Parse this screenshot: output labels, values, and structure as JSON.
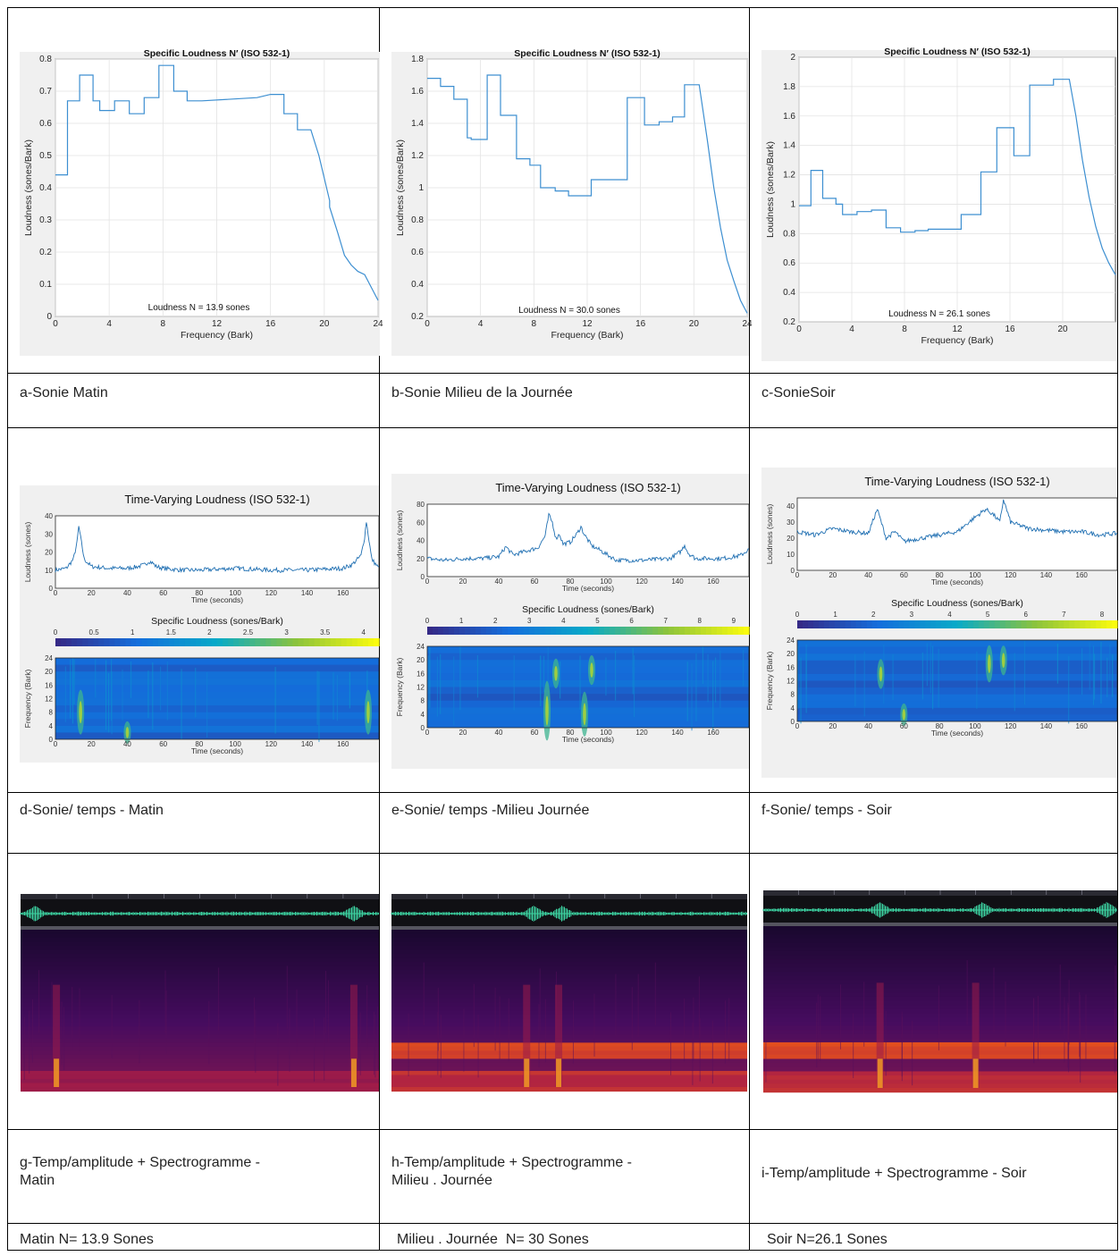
{
  "captions": {
    "a": "a-Sonie Matin",
    "b": "b-Sonie Milieu de la Journée",
    "c": "c-SonieSoir",
    "d": "d-Sonie/ temps - Matin",
    "e": "e-Sonie/ temps -Milieu Journée",
    "f": "f-Sonie/ temps - Soir",
    "g1": "g-Temp/amplitude + Spectrogramme -",
    "g2": "Matin",
    "h1": "h-Temp/amplitude + Spectrogramme -",
    "h2": "Milieu . Journée",
    "i": "i-Temp/amplitude + Spectrogramme - Soir"
  },
  "summary": {
    "matin": "Matin N= 13.9 Sones",
    "milieu": "Milieu . Journée  N= 30 Sones",
    "soir": "Soir N=26.1 Sones"
  },
  "colors": {
    "line": "#3d8fd1",
    "plot_bg": "#ffffff",
    "figure_bg": "#f0f0f0",
    "grid": "#e3e3e3"
  },
  "chart_data": [
    {
      "id": "a",
      "type": "line",
      "title": "Specific Loudness N′ (ISO 532-1)",
      "xlabel": "Frequency (Bark)",
      "ylabel": "Loudness (sones/Bark)",
      "annotation": "Loudness N = 13.9 sones",
      "xlim": [
        0,
        24
      ],
      "ylim": [
        0,
        0.8
      ],
      "xticks": [
        0,
        4,
        8,
        12,
        16,
        20,
        24
      ],
      "yticks": [
        0,
        0.1,
        0.2,
        0.3,
        0.4,
        0.5,
        0.6,
        0.7,
        0.8
      ],
      "grid": true,
      "x": [
        0,
        0.9,
        0.9,
        1.8,
        1.8,
        2.8,
        2.8,
        3.3,
        3.3,
        4.4,
        4.4,
        5.5,
        5.5,
        6.6,
        6.6,
        7.7,
        7.7,
        8.8,
        8.8,
        9.8,
        9.8,
        10.9,
        10.9,
        15,
        16,
        17,
        17,
        18,
        18,
        19,
        19.6,
        20.4,
        20.4,
        21,
        21.5,
        22,
        22.5,
        23,
        23.5,
        24
      ],
      "y": [
        0.44,
        0.44,
        0.67,
        0.67,
        0.75,
        0.75,
        0.67,
        0.67,
        0.64,
        0.64,
        0.67,
        0.67,
        0.63,
        0.63,
        0.68,
        0.68,
        0.78,
        0.78,
        0.7,
        0.7,
        0.67,
        0.67,
        0.67,
        0.68,
        0.69,
        0.69,
        0.63,
        0.63,
        0.58,
        0.58,
        0.5,
        0.36,
        0.34,
        0.26,
        0.19,
        0.16,
        0.14,
        0.13,
        0.09,
        0.05
      ]
    },
    {
      "id": "b",
      "type": "line",
      "title": "Specific Loudness N′ (ISO 532-1)",
      "xlabel": "Frequency (Bark)",
      "ylabel": "Loudness (sones/Bark)",
      "annotation": "Loudness N = 30.0 sones",
      "xlim": [
        0,
        24
      ],
      "ylim": [
        0.2,
        1.8
      ],
      "xticks": [
        0,
        4,
        8,
        12,
        16,
        20,
        24
      ],
      "yticks": [
        0.2,
        0.4,
        0.6,
        0.8,
        1,
        1.2,
        1.4,
        1.6,
        1.8
      ],
      "grid": true,
      "x": [
        0,
        1,
        1,
        2,
        2,
        3,
        3,
        3.3,
        3.3,
        4.5,
        4.5,
        5.5,
        5.5,
        6.7,
        6.7,
        7.7,
        7.7,
        8.5,
        8.5,
        9.6,
        9.6,
        10.6,
        10.6,
        12.3,
        12.3,
        15,
        15,
        16.3,
        16.3,
        17.4,
        17.4,
        18.4,
        18.4,
        19.3,
        19.3,
        20.4,
        21,
        21.5,
        22,
        22.5,
        23,
        23.5,
        24
      ],
      "y": [
        1.68,
        1.68,
        1.63,
        1.63,
        1.55,
        1.55,
        1.31,
        1.31,
        1.3,
        1.3,
        1.7,
        1.7,
        1.45,
        1.45,
        1.18,
        1.18,
        1.14,
        1.14,
        1.0,
        1.0,
        0.98,
        0.98,
        0.95,
        0.95,
        1.05,
        1.05,
        1.56,
        1.56,
        1.39,
        1.39,
        1.41,
        1.41,
        1.44,
        1.44,
        1.64,
        1.64,
        1.3,
        1.0,
        0.75,
        0.55,
        0.42,
        0.3,
        0.22
      ]
    },
    {
      "id": "c",
      "type": "line",
      "title": "Specific Loudness N′ (ISO 532-1)",
      "xlabel": "Frequency (Bark)",
      "ylabel": "Loudness (sones/Bark)",
      "annotation": "Loudness N = 26.1 sones",
      "xlim": [
        0,
        24
      ],
      "ylim": [
        0.2,
        2
      ],
      "xticks": [
        0,
        4,
        8,
        12,
        16,
        20
      ],
      "yticks": [
        0.2,
        0.4,
        0.6,
        0.8,
        1,
        1.2,
        1.4,
        1.6,
        1.8,
        2
      ],
      "grid": true,
      "x": [
        0,
        0.9,
        0.9,
        1.8,
        1.8,
        2.8,
        2.8,
        3.3,
        3.3,
        4.4,
        4.4,
        5.5,
        5.5,
        6.6,
        6.6,
        7.7,
        7.7,
        8.8,
        8.8,
        9.8,
        9.8,
        10.9,
        10.9,
        12.3,
        12.3,
        13.8,
        13.8,
        15,
        15,
        16.3,
        16.3,
        17.5,
        17.5,
        19.3,
        19.3,
        20.5,
        21,
        21.5,
        22,
        22.5,
        23,
        23.5,
        24
      ],
      "y": [
        0.99,
        0.99,
        1.23,
        1.23,
        1.04,
        1.04,
        1.0,
        1.0,
        0.93,
        0.93,
        0.95,
        0.95,
        0.96,
        0.96,
        0.84,
        0.84,
        0.81,
        0.81,
        0.82,
        0.82,
        0.83,
        0.83,
        0.83,
        0.83,
        0.93,
        0.93,
        1.22,
        1.22,
        1.52,
        1.52,
        1.33,
        1.33,
        1.81,
        1.81,
        1.85,
        1.85,
        1.6,
        1.3,
        1.05,
        0.85,
        0.7,
        0.6,
        0.52
      ]
    },
    {
      "id": "d",
      "type": "line",
      "title": "Time-Varying Loudness (ISO 532-1)",
      "xlabel": "Time (seconds)",
      "ylabel": "Loudness (sones)",
      "ylim": [
        0,
        40
      ],
      "xlim": [
        0,
        180
      ],
      "xticks": [
        0,
        20,
        40,
        60,
        80,
        100,
        120,
        140,
        160
      ],
      "yticks": [
        0,
        10,
        20,
        30,
        40
      ],
      "x": [
        0,
        6,
        10,
        12,
        13,
        14,
        16,
        20,
        30,
        40,
        46,
        50,
        52,
        54,
        56,
        60,
        70,
        80,
        100,
        120,
        140,
        160,
        165,
        170,
        172,
        173,
        174,
        176,
        180
      ],
      "y": [
        10,
        11,
        16,
        25,
        34,
        28,
        16,
        12,
        11,
        11,
        12,
        13,
        15,
        14,
        12,
        11,
        10,
        10,
        11,
        10,
        10,
        11,
        13,
        18,
        28,
        37,
        30,
        16,
        11
      ],
      "colorbar_label": "Specific Loudness (sones/Bark)",
      "colorbar_ticks": [
        0,
        0.5,
        1,
        1.5,
        2,
        2.5,
        3,
        3.5,
        4
      ],
      "spectrogram_xlabel": "Time (seconds)",
      "spectrogram_ylabel": "Frequency (Bark)",
      "spectrogram_yticks": [
        0,
        4,
        8,
        12,
        16,
        20,
        24
      ],
      "hotspots": [
        [
          14,
          8,
          3
        ],
        [
          40,
          2,
          1.5
        ],
        [
          174,
          8,
          3
        ]
      ]
    },
    {
      "id": "e",
      "type": "line",
      "title": "Time-Varying Loudness (ISO 532-1)",
      "xlabel": "Time (seconds)",
      "ylabel": "Loudness (sones)",
      "ylim": [
        0,
        80
      ],
      "xlim": [
        0,
        180
      ],
      "xticks": [
        0,
        20,
        40,
        60,
        80,
        100,
        120,
        140,
        160
      ],
      "yticks": [
        0,
        20,
        40,
        60,
        80
      ],
      "x": [
        0,
        10,
        20,
        30,
        40,
        44,
        48,
        55,
        62,
        66,
        68,
        70,
        72,
        74,
        76,
        80,
        84,
        86,
        88,
        92,
        96,
        100,
        106,
        120,
        136,
        142,
        144,
        146,
        150,
        165,
        175,
        180
      ],
      "y": [
        20,
        18,
        20,
        20,
        22,
        33,
        24,
        28,
        32,
        45,
        68,
        60,
        42,
        47,
        36,
        38,
        48,
        55,
        46,
        34,
        30,
        25,
        18,
        18,
        20,
        28,
        35,
        26,
        20,
        20,
        23,
        30
      ],
      "colorbar_label": "Specific Loudness (sones/Bark)",
      "colorbar_ticks": [
        0,
        1,
        2,
        3,
        4,
        5,
        6,
        7,
        8,
        9
      ],
      "spectrogram_xlabel": "Time (seconds)",
      "spectrogram_ylabel": "Frequency (Bark)",
      "spectrogram_yticks": [
        0,
        4,
        8,
        12,
        16,
        20,
        24
      ],
      "hotspots": [
        [
          67,
          5,
          4
        ],
        [
          72,
          16,
          2
        ],
        [
          88,
          4,
          3
        ],
        [
          92,
          17,
          2
        ]
      ]
    },
    {
      "id": "f",
      "type": "line",
      "title": "Time-Varying Loudness (ISO 532-1)",
      "xlabel": "Time (seconds)",
      "ylabel": "Loudness (sones)",
      "ylim": [
        0,
        45
      ],
      "xlim": [
        0,
        180
      ],
      "xticks": [
        0,
        20,
        40,
        60,
        80,
        100,
        120,
        140,
        160
      ],
      "yticks": [
        0,
        10,
        20,
        30,
        40
      ],
      "x": [
        0,
        10,
        20,
        30,
        40,
        45,
        50,
        55,
        60,
        70,
        80,
        90,
        100,
        106,
        110,
        114,
        116,
        120,
        130,
        140,
        150,
        160,
        170,
        180
      ],
      "y": [
        24,
        22,
        26,
        24,
        23,
        38,
        20,
        24,
        18,
        20,
        22,
        24,
        33,
        38,
        35,
        30,
        44,
        30,
        26,
        25,
        24,
        24,
        22,
        23
      ],
      "colorbar_label": "Specific Loudness (sones/Bark)",
      "colorbar_ticks": [
        0,
        1,
        2,
        3,
        4,
        5,
        6,
        7,
        8
      ],
      "spectrogram_xlabel": "Time (seconds)",
      "spectrogram_ylabel": "Frequency (Bark)",
      "spectrogram_yticks": [
        0,
        4,
        8,
        12,
        16,
        20,
        24
      ],
      "hotspots": [
        [
          47,
          14,
          2
        ],
        [
          60,
          2,
          1.5
        ],
        [
          108,
          17,
          2.5
        ],
        [
          116,
          18,
          2
        ]
      ]
    },
    {
      "id": "g",
      "type": "heatmap",
      "waveform_peaks": [
        0.04,
        0.93
      ],
      "spectrogram_bursts": [
        0.1,
        0.93
      ]
    },
    {
      "id": "h",
      "type": "heatmap",
      "waveform_peaks": [
        0.4,
        0.48
      ],
      "spectrogram_bursts": [
        0.38,
        0.47
      ]
    },
    {
      "id": "i",
      "type": "heatmap",
      "waveform_peaks": [
        0.33,
        0.62,
        0.97
      ],
      "spectrogram_bursts": [
        0.33,
        0.6
      ]
    }
  ]
}
